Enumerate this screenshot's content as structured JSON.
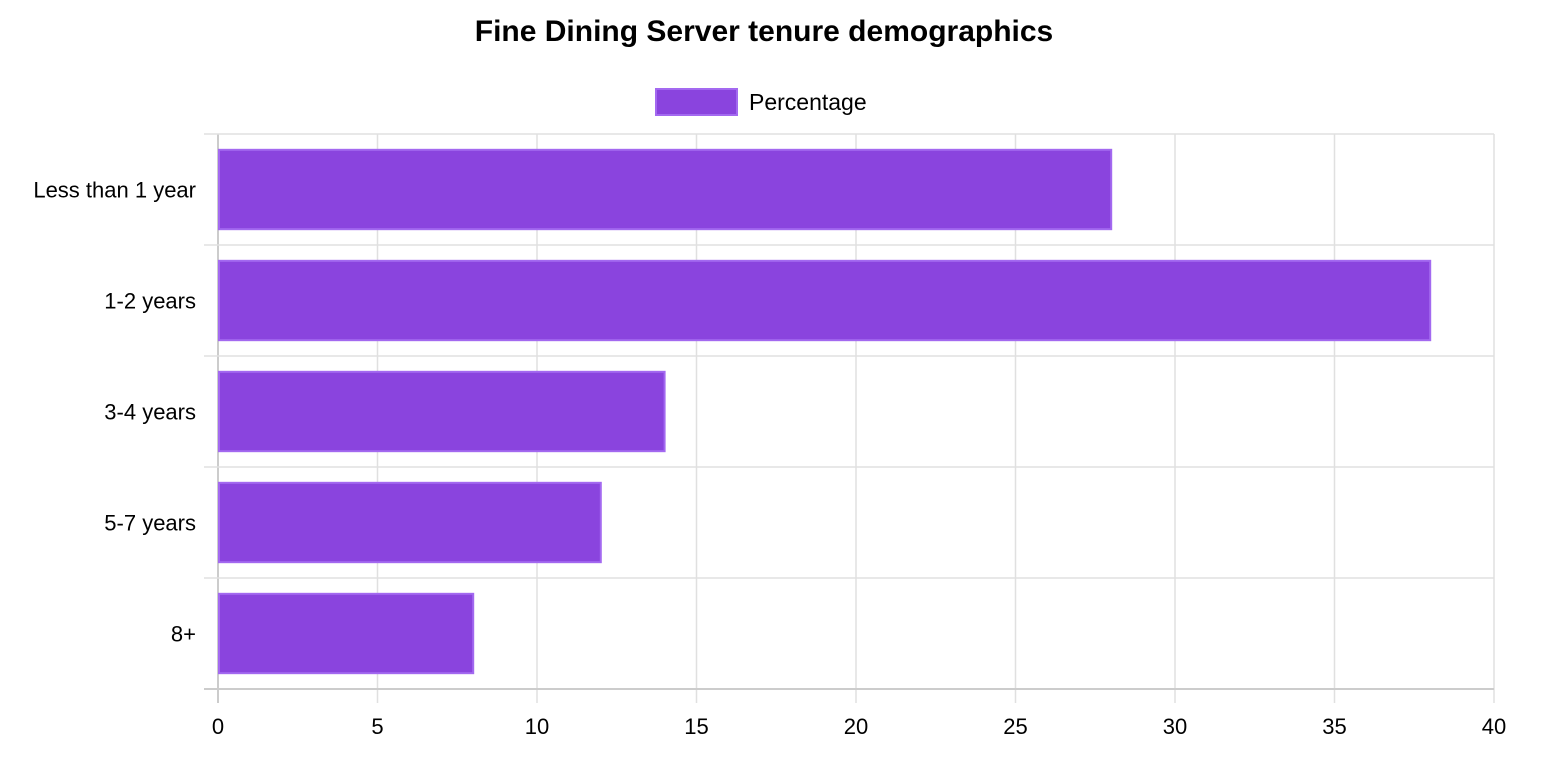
{
  "chart_data": {
    "type": "bar",
    "orientation": "horizontal",
    "title": "Fine Dining Server tenure demographics",
    "categories": [
      "Less than 1 year",
      "1-2 years",
      "3-4 years",
      "5-7 years",
      "8+"
    ],
    "series": [
      {
        "name": "Percentage",
        "values": [
          28,
          38,
          14,
          12,
          8
        ],
        "color": "#8a44de",
        "border_color": "#a369f0"
      }
    ],
    "xlim": [
      0,
      40
    ],
    "x_ticks": [
      "0",
      "5",
      "10",
      "15",
      "20",
      "25",
      "30",
      "35",
      "40"
    ],
    "grid": true,
    "legend_position": "top-center"
  }
}
